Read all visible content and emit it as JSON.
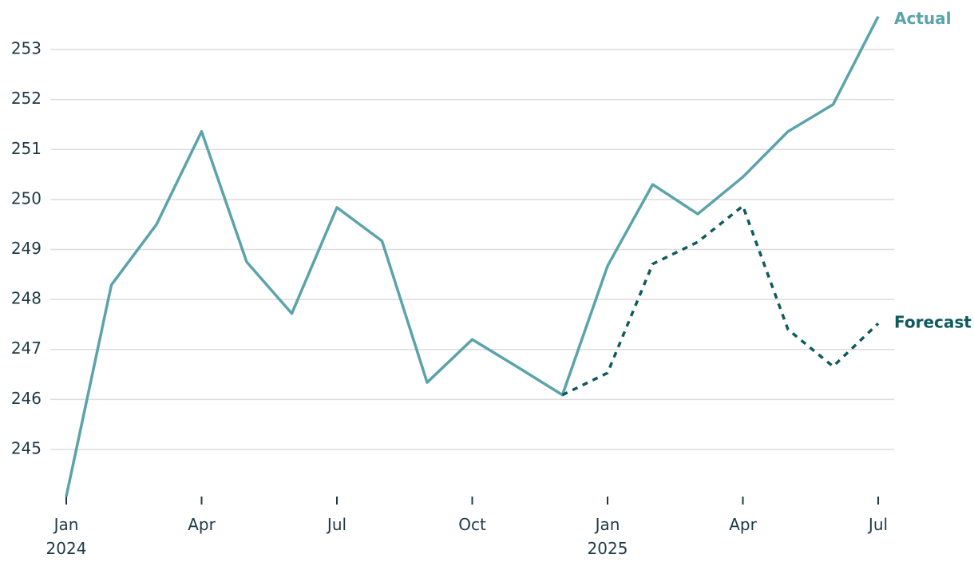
{
  "chart_data": {
    "type": "line",
    "categories": [
      "Jan 2024",
      null,
      null,
      "Apr",
      null,
      null,
      "Jul",
      null,
      null,
      "Oct",
      null,
      null,
      "Jan 2025",
      null,
      null,
      "Apr",
      null,
      null,
      "Jul"
    ],
    "series": [
      {
        "name": "Actual",
        "color": "#5ba3ab",
        "dashed": false,
        "values": [
          244.06,
          248.29,
          249.5,
          251.36,
          248.75,
          247.72,
          249.84,
          249.17,
          246.34,
          247.2,
          246.65,
          246.09,
          248.67,
          250.3,
          249.71,
          250.45,
          251.36,
          251.9,
          253.66
        ]
      },
      {
        "name": "Forecast",
        "color": "#0e5a5e",
        "dashed": true,
        "values": [
          null,
          null,
          null,
          null,
          null,
          null,
          null,
          null,
          null,
          null,
          null,
          246.09,
          246.53,
          248.71,
          249.15,
          249.87,
          247.4,
          246.66,
          247.52
        ]
      }
    ],
    "ylim": [
      244,
      254
    ],
    "yticks": [
      245,
      246,
      247,
      248,
      249,
      250,
      251,
      252,
      253
    ],
    "grid": true
  }
}
